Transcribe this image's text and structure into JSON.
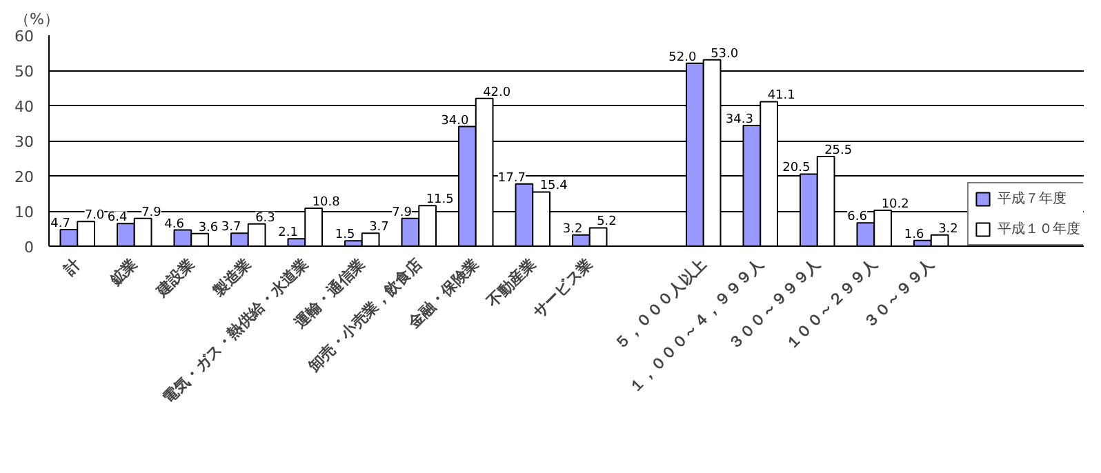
{
  "chart_data": {
    "type": "bar",
    "ylabel": "（%）",
    "categories": [
      "計",
      "鉱業",
      "建設業",
      "製造業",
      "電気・ガス・熱供給・水道業",
      "運輸・通信業",
      "卸売・小売業，飲食店",
      "金融・保険業",
      "不動産業",
      "サービス業",
      null,
      "５，０００人以上",
      "１，０００～４，９９９人",
      "３００～９９９人",
      "１００～２９９人",
      "３０～９９人"
    ],
    "series": [
      {
        "name": "平成７年度",
        "color": "#9999ff",
        "values": [
          4.7,
          6.4,
          4.6,
          3.7,
          2.1,
          1.5,
          7.9,
          34.0,
          17.7,
          3.2,
          null,
          52.0,
          34.3,
          20.5,
          6.6,
          1.6
        ],
        "value_labels": [
          "4.7",
          "6.4",
          "4.6",
          "3.7",
          "2.1",
          "1.5",
          "7.9",
          "34.0",
          "17.7",
          "3.2",
          null,
          "52.0",
          "34.3",
          "20.5",
          "6.6",
          "1.6"
        ]
      },
      {
        "name": "平成１０年度",
        "color": "#ffffff",
        "values": [
          7.0,
          7.9,
          3.6,
          6.3,
          10.8,
          3.7,
          11.5,
          42.0,
          15.4,
          5.2,
          null,
          53.0,
          41.1,
          25.5,
          10.2,
          3.2
        ],
        "value_labels": [
          "7.0",
          "7.9",
          "3.6",
          "6.3",
          "10.8",
          "3.7",
          "11.5",
          "42.0",
          "15.4",
          "5.2",
          null,
          "53.0",
          "41.1",
          "25.5",
          "10.2",
          "3.2"
        ]
      }
    ],
    "ylim": [
      0,
      60
    ],
    "yticks": [
      0,
      10,
      20,
      30,
      40,
      50,
      60
    ],
    "grid": "y",
    "legend": "right"
  }
}
